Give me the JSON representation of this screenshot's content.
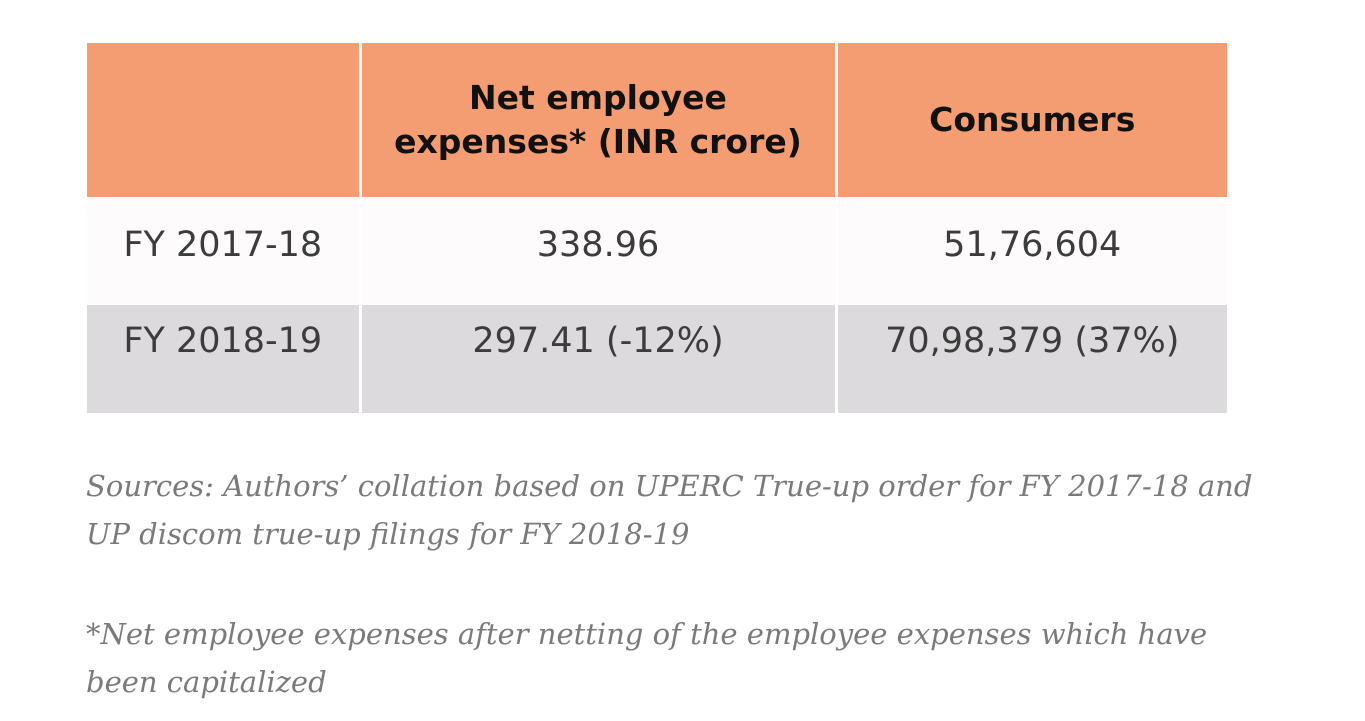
{
  "table": {
    "headers": [
      "",
      "Net employee expenses* (INR crore)",
      "Consumers"
    ],
    "rows": [
      [
        "FY 2017-18",
        "338.96",
        "51,76,604"
      ],
      [
        "FY 2018-19",
        "297.41 (-12%)",
        "70,98,379 (37%)"
      ]
    ]
  },
  "notes": {
    "sources": "Sources: Authors’ collation based on UPERC True-up order for FY 2017-18 and UP discom true-up filings for FY 2018-19",
    "footnote": "*Net employee expenses after netting of the employee expenses which have been capitalized"
  },
  "colors": {
    "header_bg": "#f49d72",
    "row_light_bg": "#fefbfd",
    "row_gray_bg": "#dcdadc",
    "note_text": "#7a7a7a"
  }
}
